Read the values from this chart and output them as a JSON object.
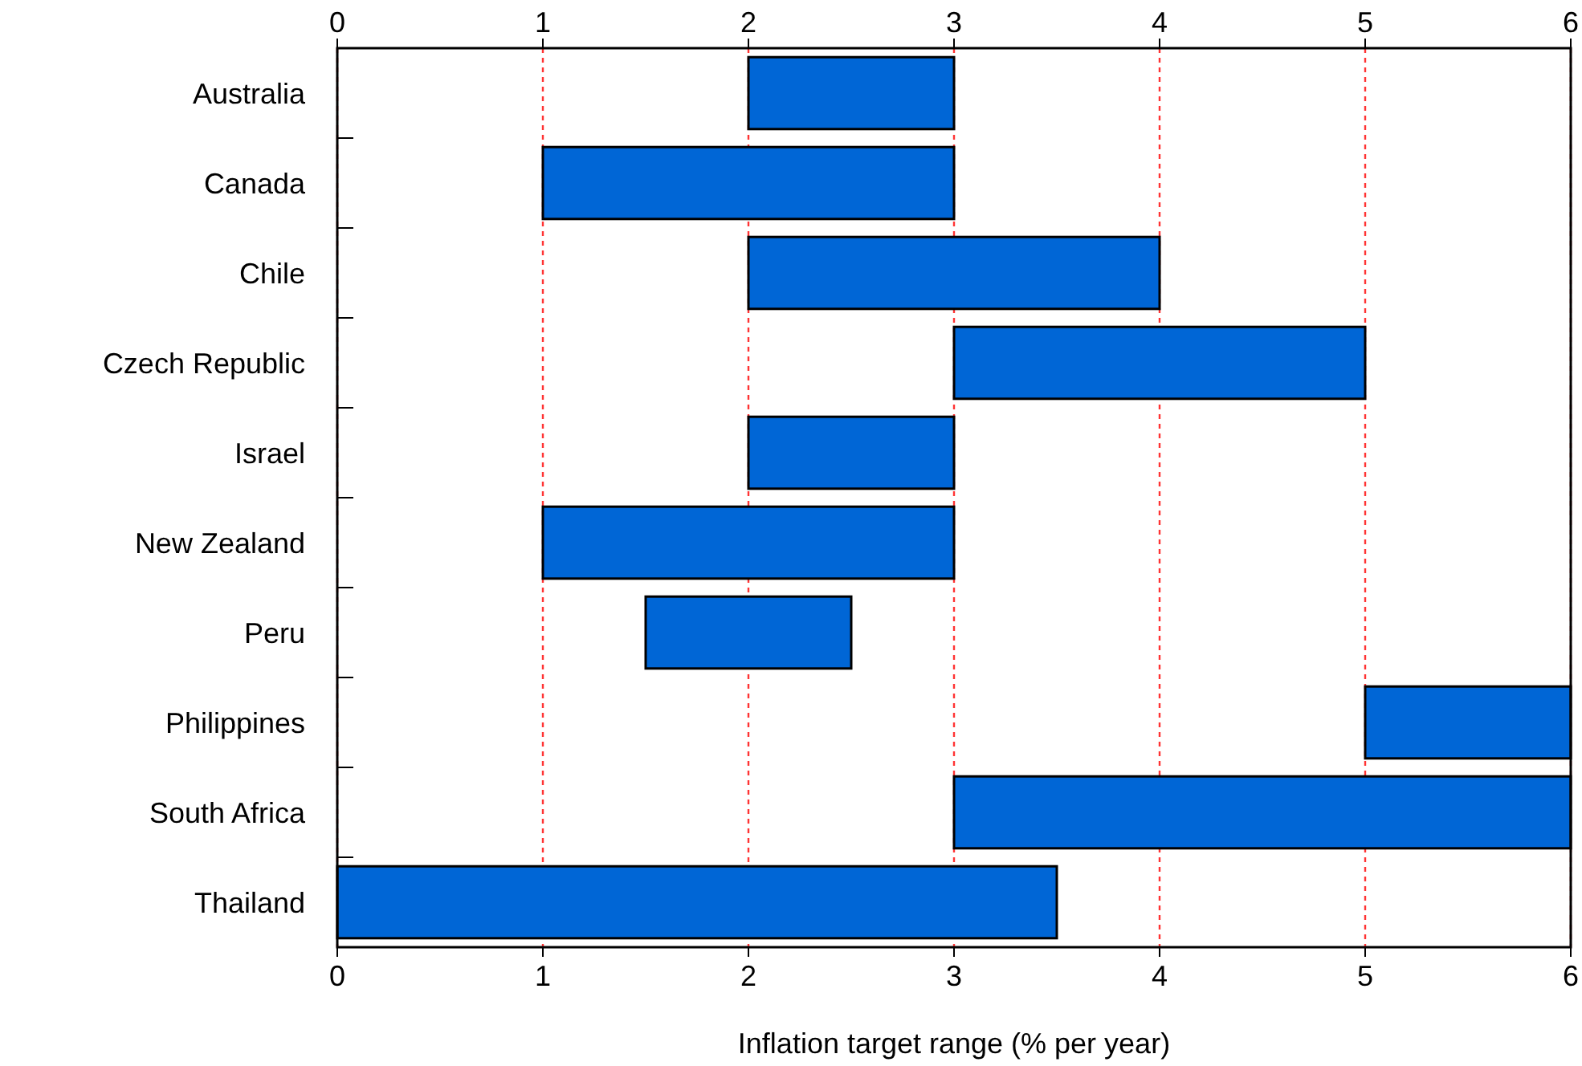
{
  "chart_data": {
    "type": "bar",
    "orientation": "horizontal",
    "categories": [
      "Australia",
      "Canada",
      "Chile",
      "Czech Republic",
      "Israel",
      "New Zealand",
      "Peru",
      "Philippines",
      "South Africa",
      "Thailand"
    ],
    "values": [
      1,
      2,
      2,
      2,
      1,
      2,
      1,
      1,
      3,
      3.5
    ],
    "base": [
      2,
      1,
      2,
      3,
      2,
      1,
      1.5,
      5,
      3,
      0
    ],
    "color": "#0066d6",
    "xlabel": "Inflation target range (% per year)",
    "xlim": [
      0,
      6
    ],
    "xticks": [
      0,
      1,
      2,
      3,
      4,
      5,
      6
    ],
    "x2lim": [
      0,
      6
    ],
    "x2ticks": [
      0,
      1,
      2,
      3,
      4,
      5,
      6
    ],
    "grid": "x"
  }
}
